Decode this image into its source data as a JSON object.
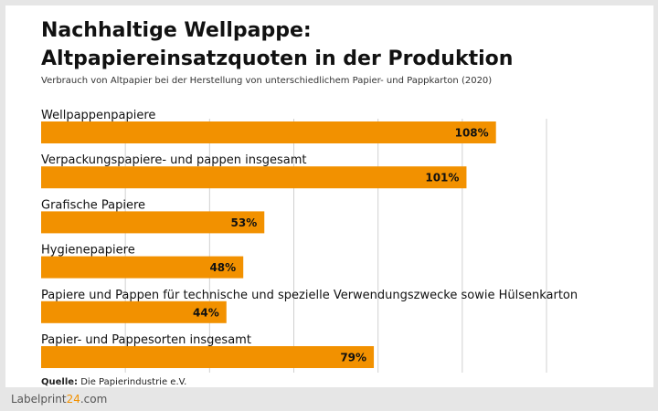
{
  "header": {
    "title_line1": "Nachhaltige Wellpappe:",
    "title_line2": "Altpapiereinsatzquoten in der Produktion",
    "subtitle": "Verbrauch von Altpapier bei der Herstellung von unterschiedlichem Papier- und Pappkarton (2020)"
  },
  "footer": {
    "source_label": "Quelle:",
    "source_text": " Die Papierindustrie e.V.",
    "brand_part1": "Labelprint",
    "brand_part2": "24",
    "brand_part3": ".com"
  },
  "colors": {
    "bar": "#f29100",
    "grid": "#d0d0d0"
  },
  "chart_data": {
    "type": "bar",
    "orientation": "horizontal",
    "categories": [
      "Wellpappenpapiere",
      "Verpackungspapiere- und pappen insgesamt",
      "Grafische Papiere",
      "Hygienepapiere",
      "Papiere und Pappen für technische und spezielle Verwendungszwecke sowie Hülsenkarton",
      "Papier- und Pappesorten insgesamt"
    ],
    "values": [
      108,
      101,
      53,
      48,
      44,
      79
    ],
    "value_labels": [
      "108%",
      "101%",
      "53%",
      "48%",
      "44%",
      "79%"
    ],
    "xlim": [
      0,
      120
    ],
    "grid": true
  }
}
